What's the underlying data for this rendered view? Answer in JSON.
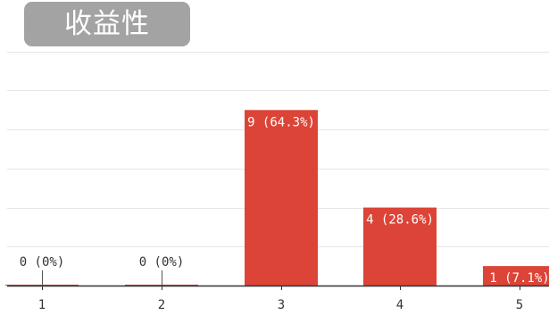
{
  "chart_data": {
    "type": "bar",
    "title": "收益性",
    "categories": [
      "1",
      "2",
      "3",
      "4",
      "5"
    ],
    "values": [
      0,
      0,
      9,
      4,
      1
    ],
    "data_labels": [
      "0 (0%)",
      "0 (0%)",
      "9 (64.3%)",
      "4 (28.6%)",
      "1 (7.1%)"
    ],
    "ylim": [
      0,
      14
    ],
    "grid": true,
    "colors": {
      "bar": "#dc4437",
      "grid": "#e6e6e6",
      "axis": "#333333",
      "title_bg": "#a3a3a3",
      "title_text": "#ffffff"
    }
  }
}
